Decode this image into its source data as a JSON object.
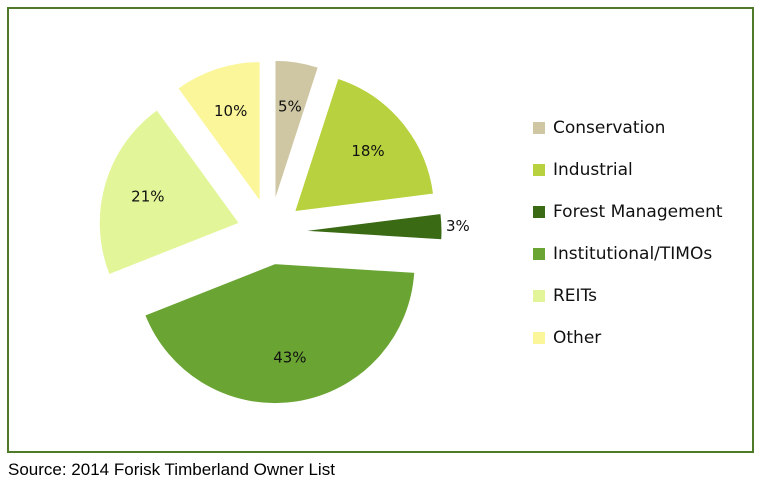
{
  "chart_data": {
    "type": "pie",
    "title": "",
    "legend_position": "right",
    "slices": [
      {
        "label": "Conservation",
        "value": 5,
        "value_label": "5%",
        "color": "#cfc7a4"
      },
      {
        "label": "Industrial",
        "value": 18,
        "value_label": "18%",
        "color": "#b8d23f"
      },
      {
        "label": "Forest Management",
        "value": 3,
        "value_label": "3%",
        "color": "#3a6a14"
      },
      {
        "label": "Institutional/TIMOs",
        "value": 43,
        "value_label": "43%",
        "color": "#6aa534"
      },
      {
        "label": "REITs",
        "value": 21,
        "value_label": "21%",
        "color": "#e2f598"
      },
      {
        "label": "Other",
        "value": 10,
        "value_label": "10%",
        "color": "#fbf69a"
      }
    ]
  },
  "source": "Source: 2014 Forisk Timberland Owner List",
  "frame_border_color": "#4f7a28"
}
